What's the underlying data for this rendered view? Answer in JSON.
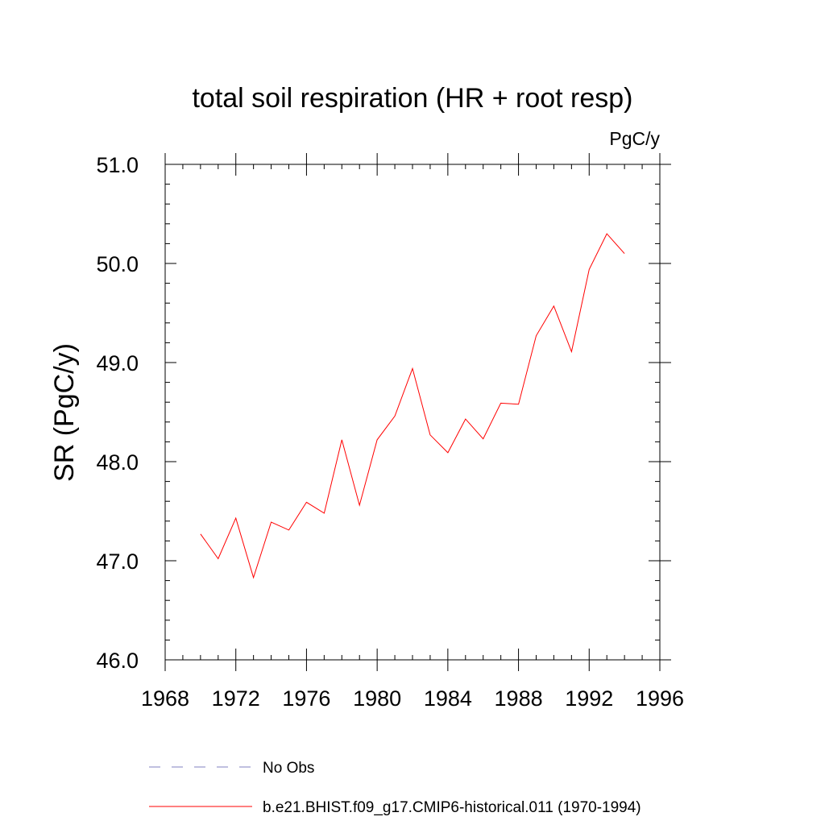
{
  "chart_data": {
    "type": "line",
    "title": "total soil respiration (HR + root resp)",
    "units_label": "PgC/y",
    "ylabel": "SR  (PgC/y)",
    "xlabel": "",
    "xlim": [
      1968,
      1996
    ],
    "ylim": [
      46.0,
      51.0
    ],
    "x_ticks": [
      1968,
      1972,
      1976,
      1980,
      1984,
      1988,
      1992,
      1996
    ],
    "x_tick_labels": [
      "1968",
      "1972",
      "1976",
      "1980",
      "1984",
      "1988",
      "1992",
      "1996"
    ],
    "y_ticks": [
      46.0,
      47.0,
      48.0,
      49.0,
      50.0,
      51.0
    ],
    "y_tick_labels": [
      "46.0",
      "47.0",
      "48.0",
      "49.0",
      "50.0",
      "51.0"
    ],
    "grid": false,
    "legend_position": "bottom",
    "series": [
      {
        "name": "No Obs",
        "color": "#8080c0",
        "dash": "dashed",
        "x": [],
        "values": []
      },
      {
        "name": "b.e21.BHIST.f09_g17.CMIP6-historical.011 (1970-1994)",
        "color": "#ff0000",
        "dash": "solid",
        "x": [
          1970,
          1971,
          1972,
          1973,
          1974,
          1975,
          1976,
          1977,
          1978,
          1979,
          1980,
          1981,
          1982,
          1983,
          1984,
          1985,
          1986,
          1987,
          1988,
          1989,
          1990,
          1991,
          1992,
          1993,
          1994
        ],
        "values": [
          47.27,
          47.02,
          47.43,
          46.83,
          47.39,
          47.31,
          47.59,
          47.48,
          48.22,
          47.56,
          48.22,
          48.46,
          48.94,
          48.27,
          48.09,
          48.43,
          48.23,
          48.59,
          48.58,
          49.27,
          49.57,
          49.11,
          49.94,
          50.3,
          50.1
        ]
      }
    ]
  }
}
